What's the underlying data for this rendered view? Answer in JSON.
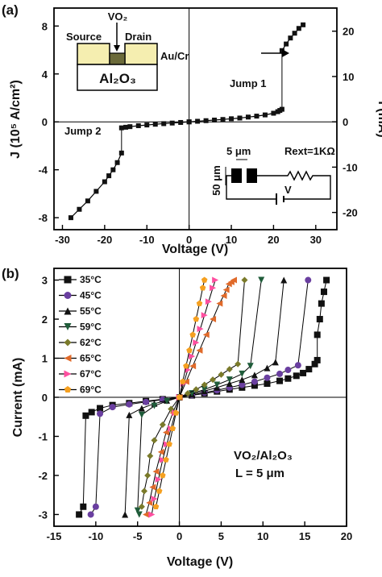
{
  "chart_data": [
    {
      "type": "line",
      "panel_label": "(a)",
      "xlabel": "Voltage (V)",
      "ylabel_left": "J (10⁵ A/cm²)",
      "ylabel_right": "I (mA)",
      "xlim": [
        -32,
        35
      ],
      "ylim_left": [
        -9,
        9.5
      ],
      "ylim_right": [
        -23.8,
        25.1
      ],
      "x_ticks": [
        -30,
        -20,
        -10,
        0,
        10,
        20,
        30
      ],
      "y_ticks_left": [
        -8,
        -4,
        0,
        4,
        8
      ],
      "y_ticks_right": [
        -20,
        -10,
        0,
        10,
        20
      ],
      "annotations": {
        "jump1": "Jump 1",
        "jump2": "Jump 2",
        "inset_vo2": "VO₂",
        "inset_source": "Source",
        "inset_drain": "Drain",
        "inset_aucr": "Au/Cr",
        "inset_al2o3": "Al₂O₃",
        "circuit_5um": "5 μm",
        "circuit_50um": "50 μm",
        "circuit_rext": "Rext=1KΩ",
        "circuit_v": "V"
      },
      "series": [
        {
          "branches": [
            {
              "x": [
                0,
                2,
                4,
                6,
                8,
                10,
                12,
                14,
                16,
                18,
                20,
                21,
                21.5,
                22
              ],
              "y": [
                0,
                0.05,
                0.1,
                0.15,
                0.2,
                0.26,
                0.32,
                0.4,
                0.48,
                0.58,
                0.72,
                0.85,
                0.95,
                1.05
              ]
            },
            {
              "x": [
                22,
                23,
                24,
                25,
                26,
                27
              ],
              "y": [
                5.95,
                6.5,
                7.0,
                7.4,
                7.8,
                8.1
              ]
            },
            {
              "x": [
                0,
                -2,
                -4,
                -6,
                -8,
                -10,
                -12,
                -14,
                -15,
                -16
              ],
              "y": [
                0,
                -0.05,
                -0.1,
                -0.15,
                -0.2,
                -0.26,
                -0.32,
                -0.4,
                -0.45,
                -0.5
              ]
            },
            {
              "x": [
                -16,
                -17,
                -18,
                -19,
                -20,
                -22,
                -24,
                -26,
                -28
              ],
              "y": [
                -2.6,
                -3.4,
                -4.0,
                -4.5,
                -5.0,
                -5.8,
                -6.6,
                -7.3,
                -8.0
              ]
            }
          ],
          "jumps": [
            [
              [
                22,
                1.05
              ],
              [
                22,
                5.95
              ]
            ],
            [
              [
                -16,
                -0.5
              ],
              [
                -16,
                -2.6
              ]
            ]
          ]
        }
      ]
    },
    {
      "type": "line",
      "panel_label": "(b)",
      "xlabel": "Voltage (V)",
      "ylabel": "Current (mA)",
      "xlim": [
        -15,
        20
      ],
      "ylim": [
        -3.3,
        3.3
      ],
      "x_ticks": [
        -15,
        -10,
        -5,
        0,
        5,
        10,
        15,
        20
      ],
      "y_ticks": [
        -3,
        -2,
        -1,
        0,
        1,
        2,
        3
      ],
      "annotations": {
        "material": "VO₂/Al₂O₃",
        "length": "L = 5 μm"
      },
      "series": [
        {
          "name": "35°C",
          "color": "#111111",
          "marker": "square",
          "branches": [
            {
              "x": [
                0,
                1.5,
                3,
                4.5,
                6,
                7.5,
                9,
                10.5,
                12,
                13,
                14,
                14.8,
                15.5,
                16.2,
                16.5
              ],
              "y": [
                0,
                0.05,
                0.1,
                0.15,
                0.2,
                0.25,
                0.3,
                0.35,
                0.42,
                0.48,
                0.55,
                0.62,
                0.72,
                0.85,
                0.95
              ]
            },
            {
              "x": [
                16.5,
                16.8,
                17,
                17.3,
                17.6
              ],
              "y": [
                1.6,
                2.0,
                2.4,
                2.7,
                3.0
              ]
            },
            {
              "x": [
                0,
                -2,
                -4,
                -6,
                -8,
                -9.5,
                -10.5,
                -11.2
              ],
              "y": [
                0,
                -0.05,
                -0.1,
                -0.15,
                -0.2,
                -0.28,
                -0.38,
                -0.47
              ]
            },
            {
              "x": [
                -11.5,
                -12
              ],
              "y": [
                -2.8,
                -3.0
              ]
            }
          ],
          "jumps": [
            [
              [
                16.5,
                0.95
              ],
              [
                16.5,
                1.6
              ]
            ],
            [
              [
                -11.2,
                -0.47
              ],
              [
                -11.5,
                -2.8
              ]
            ]
          ]
        },
        {
          "name": "45°C",
          "color": "#6a3fa0",
          "marker": "circle",
          "branches": [
            {
              "x": [
                0,
                1.5,
                3,
                4.5,
                6,
                7.5,
                9,
                10.5,
                12,
                13,
                14.2
              ],
              "y": [
                0,
                0.06,
                0.12,
                0.18,
                0.25,
                0.32,
                0.4,
                0.5,
                0.6,
                0.7,
                0.82
              ]
            },
            {
              "x": [
                15.4
              ],
              "y": [
                3.0
              ]
            },
            {
              "x": [
                0,
                -2,
                -4,
                -6,
                -8,
                -9.5
              ],
              "y": [
                0,
                -0.06,
                -0.12,
                -0.18,
                -0.25,
                -0.42
              ]
            },
            {
              "x": [
                -10,
                -10.6
              ],
              "y": [
                -2.8,
                -3.0
              ]
            }
          ],
          "jumps": [
            [
              [
                14.2,
                0.82
              ],
              [
                15.4,
                3.0
              ]
            ],
            [
              [
                -9.5,
                -0.42
              ],
              [
                -10,
                -2.8
              ]
            ]
          ]
        },
        {
          "name": "55°C",
          "color": "#111111",
          "marker": "triangle",
          "branches": [
            {
              "x": [
                0,
                1.5,
                3,
                4.5,
                6,
                7.5,
                9,
                10.5,
                11.5
              ],
              "y": [
                0,
                0.08,
                0.16,
                0.25,
                0.35,
                0.45,
                0.57,
                0.75,
                0.9
              ]
            },
            {
              "x": [
                12.5
              ],
              "y": [
                3.0
              ]
            },
            {
              "x": [
                0,
                -1.5,
                -3,
                -4.5,
                -6
              ],
              "y": [
                0,
                -0.08,
                -0.16,
                -0.28,
                -0.45
              ]
            },
            {
              "x": [
                -6.5
              ],
              "y": [
                -3.0
              ]
            }
          ],
          "jumps": [
            [
              [
                11.5,
                0.9
              ],
              [
                12.5,
                3.0
              ]
            ],
            [
              [
                -6,
                -0.45
              ],
              [
                -6.5,
                -3.0
              ]
            ]
          ]
        },
        {
          "name": "59°C",
          "color": "#1f5c3a",
          "marker": "triangle-down",
          "branches": [
            {
              "x": [
                0,
                1.5,
                3,
                4.5,
                6,
                7.5,
                8.5
              ],
              "y": [
                0,
                0.1,
                0.2,
                0.32,
                0.45,
                0.6,
                0.8
              ]
            },
            {
              "x": [
                9.8
              ],
              "y": [
                3.0
              ]
            },
            {
              "x": [
                0,
                -1.5,
                -3,
                -4.5
              ],
              "y": [
                0,
                -0.1,
                -0.22,
                -0.45
              ]
            },
            {
              "x": [
                -5,
                -4.8
              ],
              "y": [
                -2.9,
                -3.0
              ]
            }
          ],
          "jumps": [
            [
              [
                8.5,
                0.8
              ],
              [
                9.8,
                3.0
              ]
            ],
            [
              [
                -4.5,
                -0.45
              ],
              [
                -5,
                -2.9
              ]
            ]
          ]
        },
        {
          "name": "62°C",
          "color": "#7a7a2a",
          "marker": "diamond",
          "branches": [
            {
              "x": [
                0,
                1,
                2,
                3,
                4,
                5,
                6,
                7
              ],
              "y": [
                0,
                0.1,
                0.2,
                0.32,
                0.45,
                0.58,
                0.72,
                0.85
              ]
            },
            {
              "x": [
                7.8
              ],
              "y": [
                3.0
              ]
            },
            {
              "x": [
                0,
                -1,
                -2,
                -3,
                -3.5,
                -3.8,
                -4.2,
                -4.5
              ],
              "y": [
                0,
                -0.3,
                -0.7,
                -1.1,
                -1.5,
                -2.0,
                -2.4,
                -2.8
              ]
            }
          ],
          "jumps": [
            [
              [
                7,
                0.85
              ],
              [
                7.8,
                3.0
              ]
            ]
          ]
        },
        {
          "name": "65°C",
          "color": "#e06a2a",
          "marker": "triangle-left",
          "branches": [
            {
              "x": [
                0,
                0.8,
                1.6,
                2.4,
                3.2,
                4.0,
                4.8,
                5.3,
                5.6,
                5.9,
                6.2,
                6.5
              ],
              "y": [
                0,
                0.4,
                0.8,
                1.2,
                1.6,
                2.0,
                2.4,
                2.6,
                2.75,
                2.9,
                2.95,
                3.0
              ]
            },
            {
              "x": [
                0,
                -0.8,
                -1.6,
                -2.2,
                -2.8,
                -3.2,
                -3.6,
                -4.0
              ],
              "y": [
                0,
                -0.4,
                -0.9,
                -1.4,
                -1.9,
                -2.3,
                -2.7,
                -3.0
              ]
            }
          ],
          "jumps": []
        },
        {
          "name": "67°C",
          "color": "#ff4fa0",
          "marker": "triangle-right",
          "branches": [
            {
              "x": [
                0,
                0.5,
                1.0,
                1.5,
                2.0,
                2.5,
                3.0,
                3.5,
                4.0,
                4.3
              ],
              "y": [
                0,
                0.35,
                0.7,
                1.05,
                1.4,
                1.75,
                2.1,
                2.45,
                2.8,
                3.0
              ]
            },
            {
              "x": [
                0,
                -0.5,
                -1.0,
                -1.5,
                -2.0,
                -2.5,
                -3.0,
                -3.3
              ],
              "y": [
                0,
                -0.4,
                -0.8,
                -1.2,
                -1.6,
                -2.1,
                -2.6,
                -3.0
              ]
            }
          ],
          "jumps": []
        },
        {
          "name": "69°C",
          "color": "#f5a020",
          "marker": "pentagon",
          "branches": [
            {
              "x": [
                0,
                0.4,
                0.8,
                1.2,
                1.6,
                2.0,
                2.4,
                2.8,
                3.0
              ],
              "y": [
                0,
                0.4,
                0.8,
                1.2,
                1.6,
                2.0,
                2.4,
                2.8,
                3.0
              ]
            },
            {
              "x": [
                0,
                -0.4,
                -0.8,
                -1.2,
                -1.6,
                -2.0,
                -2.4,
                -2.8
              ],
              "y": [
                0,
                -0.4,
                -0.8,
                -1.2,
                -1.6,
                -2.0,
                -2.4,
                -2.8
              ]
            }
          ],
          "jumps": []
        }
      ]
    }
  ]
}
